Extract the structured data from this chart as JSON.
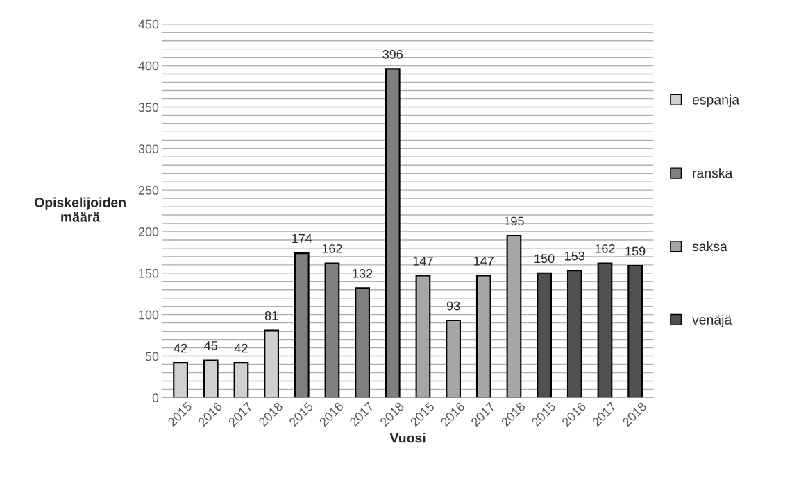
{
  "chart_data": {
    "type": "bar",
    "xlabel": "Vuosi",
    "ylabel": "Opiskelijoiden\nmäärä",
    "categories": [
      "2015",
      "2016",
      "2017",
      "2018",
      "2015",
      "2016",
      "2017",
      "2018",
      "2015",
      "2016",
      "2017",
      "2018",
      "2015",
      "2016",
      "2017",
      "2018"
    ],
    "series": [
      {
        "name": "espanja",
        "color": "#d0d0d0",
        "values": [
          42,
          45,
          42,
          81,
          null,
          null,
          null,
          null,
          null,
          null,
          null,
          null,
          null,
          null,
          null,
          null
        ]
      },
      {
        "name": "ranska",
        "color": "#7f7f7f",
        "values": [
          null,
          null,
          null,
          null,
          174,
          162,
          132,
          396,
          null,
          null,
          null,
          null,
          null,
          null,
          null,
          null
        ]
      },
      {
        "name": "saksa",
        "color": "#a6a6a6",
        "values": [
          null,
          null,
          null,
          null,
          null,
          null,
          null,
          null,
          147,
          93,
          147,
          195,
          null,
          null,
          null,
          null
        ]
      },
      {
        "name": "venäjä",
        "color": "#505050",
        "values": [
          null,
          null,
          null,
          null,
          null,
          null,
          null,
          null,
          null,
          null,
          null,
          null,
          150,
          153,
          162,
          159
        ]
      }
    ],
    "ylim": [
      0,
      450
    ],
    "yticks": [
      0,
      {
        "value": 10,
        "label": null
      },
      {
        "value": 20,
        "label": null
      },
      {
        "value": 30,
        "label": null
      },
      {
        "value": 40,
        "label": null
      },
      50,
      {
        "value": 60,
        "label": null
      },
      {
        "value": 70,
        "label": null
      },
      {
        "value": 80,
        "label": null
      },
      {
        "value": 90,
        "label": null
      },
      100,
      {
        "value": 110,
        "label": null
      },
      {
        "value": 120,
        "label": null
      },
      {
        "value": 130,
        "label": null
      },
      {
        "value": 140,
        "label": null
      },
      150,
      {
        "value": 160,
        "label": null
      },
      {
        "value": 170,
        "label": null
      },
      {
        "value": 180,
        "label": null
      },
      {
        "value": 190,
        "label": null
      },
      200,
      {
        "value": 210,
        "label": null
      },
      {
        "value": 220,
        "label": null
      },
      {
        "value": 230,
        "label": null
      },
      {
        "value": 240,
        "label": null
      },
      250,
      {
        "value": 260,
        "label": null
      },
      {
        "value": 270,
        "label": null
      },
      {
        "value": 280,
        "label": null
      },
      {
        "value": 290,
        "label": null
      },
      300,
      {
        "value": 310,
        "label": null
      },
      {
        "value": 320,
        "label": null
      },
      {
        "value": 330,
        "label": null
      },
      {
        "value": 340,
        "label": null
      },
      350,
      {
        "value": 360,
        "label": null
      },
      {
        "value": 370,
        "label": null
      },
      {
        "value": 380,
        "label": null
      },
      {
        "value": 390,
        "label": null
      },
      400,
      {
        "value": 410,
        "label": null
      },
      {
        "value": 420,
        "label": null
      },
      {
        "value": 430,
        "label": null
      },
      {
        "value": 440,
        "label": null
      },
      450
    ],
    "grid": "y",
    "legend": "right",
    "data_labels": true
  }
}
